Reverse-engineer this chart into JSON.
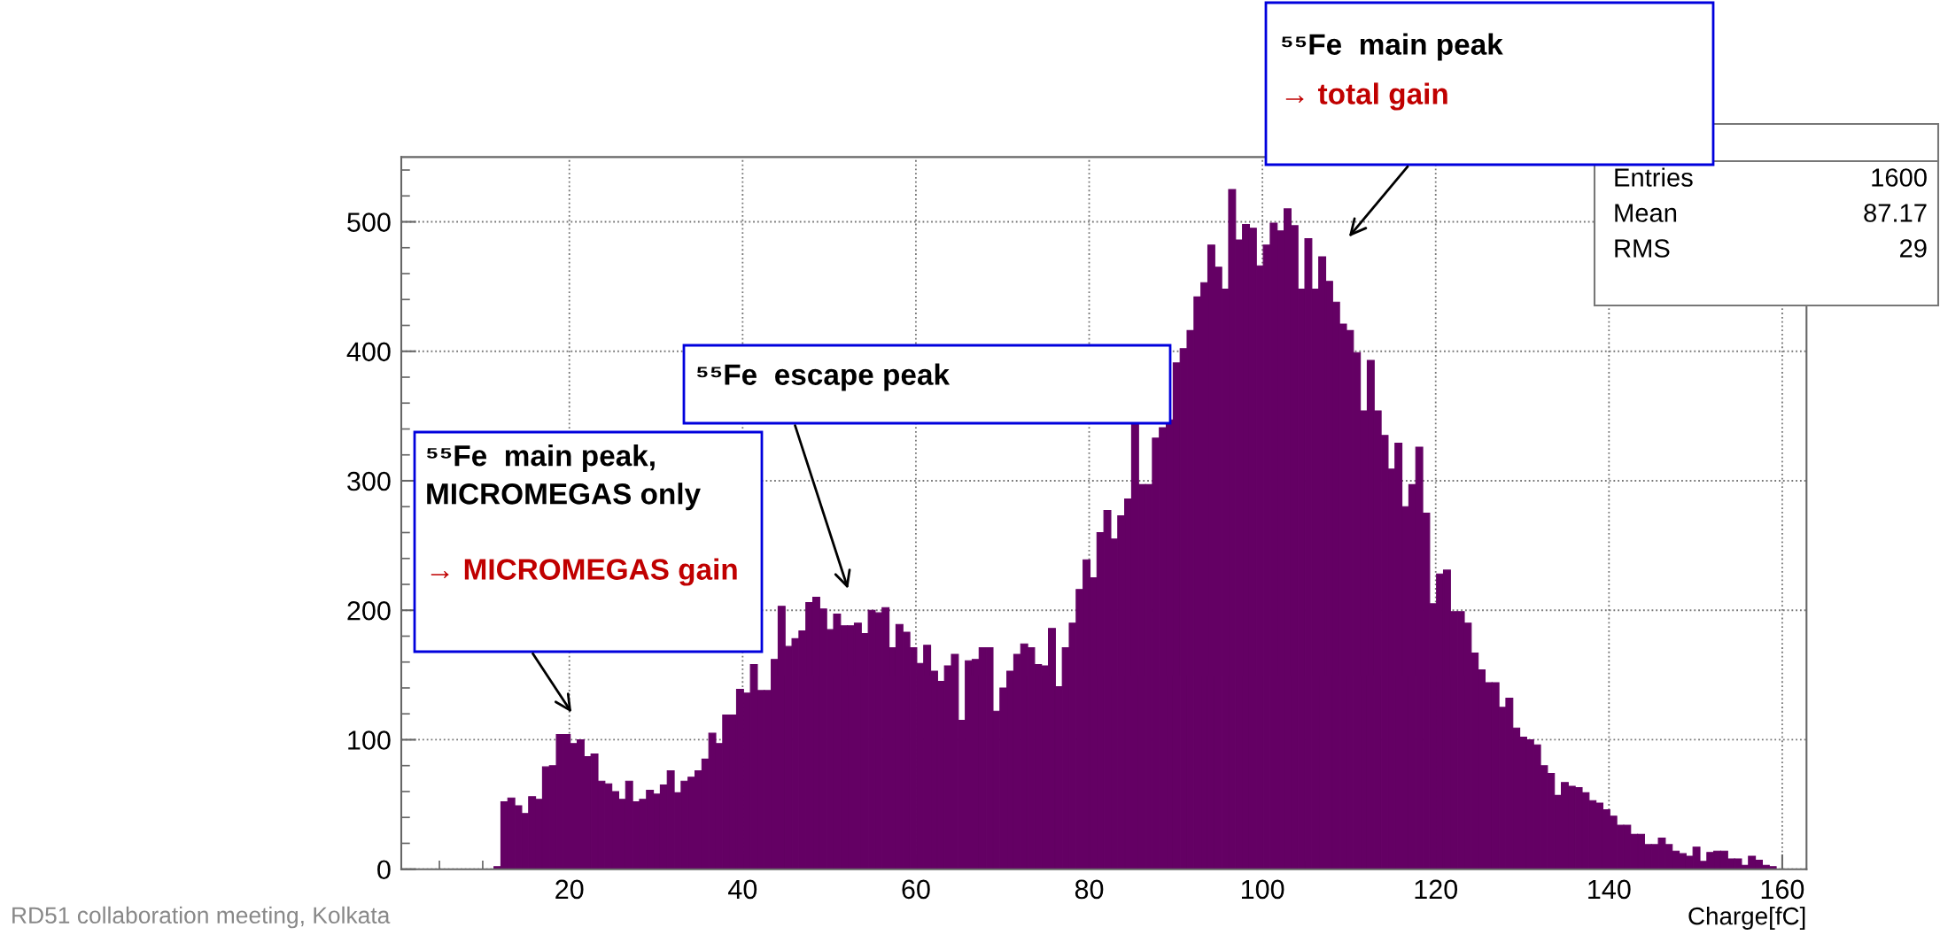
{
  "chart_data": {
    "type": "histogram",
    "xlabel": "Charge[fC]",
    "color": "#640064",
    "bins": [
      11.3,
      12.1,
      12.9,
      13.7,
      14.5,
      15.3,
      16.1,
      16.9,
      17.7,
      18.5,
      19.3,
      20.1,
      20.9,
      21.7,
      22.5,
      23.3,
      24.1,
      24.9,
      25.7,
      26.5,
      27.3,
      28.1,
      28.9,
      29.7,
      30.5,
      31.3,
      32.1,
      32.9,
      33.7,
      34.5,
      35.3,
      36.1,
      36.9,
      37.7,
      38.5,
      39.3,
      40.1,
      40.9,
      41.7,
      42.5,
      43.3,
      44.1,
      44.9,
      45.7,
      46.5,
      47.3,
      48.1,
      48.9,
      49.7,
      50.5,
      51.3,
      52.1,
      52.9,
      53.7,
      54.5,
      55.3,
      56.1,
      56.9,
      57.7,
      58.5,
      59.3,
      60.1,
      60.9,
      61.7,
      62.5,
      63.3,
      64.1,
      64.9,
      65.7,
      66.5,
      67.3,
      68.1,
      68.9,
      69.7,
      70.5,
      71.3,
      72.1,
      72.9,
      73.7,
      74.5,
      75.3,
      76.1,
      76.9,
      77.7,
      78.5,
      79.3,
      80.1,
      80.9,
      81.7,
      82.5,
      83.3,
      84.1,
      84.9,
      85.7,
      86.5,
      87.3,
      88.1,
      88.9,
      89.7,
      90.5,
      91.3,
      92.1,
      92.9,
      93.7,
      94.5,
      95.3,
      96.1,
      96.9,
      97.7,
      98.5,
      99.3,
      100.1,
      100.9,
      101.7,
      102.5,
      103.3,
      104.1,
      104.9,
      105.7,
      106.5,
      107.3,
      108.1,
      108.9,
      109.7,
      110.5,
      111.3,
      112.1,
      112.9,
      113.7,
      114.5,
      115.3,
      116.1,
      116.9,
      117.7,
      118.5,
      119.3,
      120.1,
      120.9,
      121.7,
      122.5,
      123.3,
      124.1,
      124.9,
      125.7,
      126.5,
      127.3,
      128.1,
      128.9,
      129.7,
      130.5,
      131.3,
      132.1,
      132.9,
      133.7,
      134.5,
      135.3,
      136.1,
      136.9,
      137.7,
      138.5,
      139.3,
      140.1,
      140.9,
      141.7,
      142.5,
      143.3,
      144.1,
      144.9,
      145.7,
      146.5,
      147.3,
      148.1,
      148.9,
      149.7,
      150.5,
      151.3,
      152.1,
      152.9,
      153.7,
      154.5,
      155.3,
      156.1,
      156.9,
      157.7,
      158.5,
      159.3
    ],
    "values": [
      2,
      52,
      55,
      49,
      43,
      56,
      54,
      79,
      80,
      104,
      104,
      97,
      100,
      87,
      89,
      68,
      66,
      60,
      54,
      68,
      52,
      54,
      61,
      58,
      65,
      76,
      59,
      68,
      71,
      76,
      85,
      105,
      97,
      119,
      119,
      139,
      136,
      158,
      138,
      138,
      162,
      203,
      172,
      178,
      184,
      206,
      210,
      201,
      185,
      197,
      188,
      188,
      190,
      182,
      200,
      198,
      202,
      171,
      189,
      183,
      171,
      159,
      173,
      153,
      145,
      157,
      166,
      115,
      161,
      162,
      171,
      171,
      122,
      140,
      153,
      166,
      174,
      171,
      158,
      157,
      186,
      141,
      171,
      190,
      216,
      239,
      225,
      260,
      277,
      255,
      273,
      286,
      344,
      297,
      297,
      333,
      341,
      347,
      391,
      402,
      416,
      442,
      453,
      482,
      465,
      448,
      525,
      486,
      498,
      495,
      466,
      482,
      499,
      493,
      510,
      497,
      448,
      487,
      448,
      473,
      454,
      438,
      421,
      416,
      399,
      354,
      393,
      354,
      335,
      309,
      329,
      280,
      297,
      326,
      275,
      205,
      228,
      231,
      199,
      199,
      190,
      167,
      154,
      144,
      144,
      125,
      132,
      109,
      102,
      100,
      96,
      80,
      74,
      57,
      67,
      64,
      63,
      59,
      53,
      51,
      46,
      41,
      34,
      34,
      27,
      27,
      19,
      19,
      24,
      19,
      14,
      12,
      10,
      17,
      6,
      13,
      14,
      14,
      8,
      8,
      3,
      10,
      7,
      3,
      2
    ],
    "xlim": [
      0.6,
      162.8
    ],
    "ylim": [
      0,
      550
    ],
    "xticks": [
      {
        "value": 5,
        "label": null
      },
      {
        "value": 10,
        "label": null
      },
      {
        "value": 15,
        "label": null
      },
      20,
      {
        "value": 25,
        "label": null
      },
      {
        "value": 30,
        "label": null
      },
      {
        "value": 35,
        "label": null
      },
      40,
      {
        "value": 45,
        "label": null
      },
      {
        "value": 50,
        "label": null
      },
      {
        "value": 55,
        "label": null
      },
      60,
      {
        "value": 65,
        "label": null
      },
      {
        "value": 70,
        "label": null
      },
      {
        "value": 75,
        "label": null
      },
      80,
      {
        "value": 85,
        "label": null
      },
      {
        "value": 90,
        "label": null
      },
      {
        "value": 95,
        "label": null
      },
      100,
      {
        "value": 105,
        "label": null
      },
      {
        "value": 110,
        "label": null
      },
      {
        "value": 115,
        "label": null
      },
      120,
      {
        "value": 125,
        "label": null
      },
      {
        "value": 130,
        "label": null
      },
      {
        "value": 135,
        "label": null
      },
      140,
      {
        "value": 145,
        "label": null
      },
      {
        "value": 150,
        "label": null
      },
      {
        "value": 155,
        "label": null
      },
      160
    ],
    "yticks": [
      0,
      {
        "value": 20,
        "label": null
      },
      {
        "value": 40,
        "label": null
      },
      {
        "value": 60,
        "label": null
      },
      {
        "value": 80,
        "label": null
      },
      100,
      {
        "value": 120,
        "label": null
      },
      {
        "value": 140,
        "label": null
      },
      {
        "value": 160,
        "label": null
      },
      {
        "value": 180,
        "label": null
      },
      200,
      {
        "value": 220,
        "label": null
      },
      {
        "value": 240,
        "label": null
      },
      {
        "value": 260,
        "label": null
      },
      {
        "value": 280,
        "label": null
      },
      300,
      {
        "value": 320,
        "label": null
      },
      {
        "value": 340,
        "label": null
      },
      {
        "value": 360,
        "label": null
      },
      {
        "value": 380,
        "label": null
      },
      400,
      {
        "value": 420,
        "label": null
      },
      {
        "value": 440,
        "label": null
      },
      {
        "value": 460,
        "label": null
      },
      {
        "value": 480,
        "label": null
      },
      500,
      {
        "value": 520,
        "label": null
      },
      {
        "value": 540,
        "label": null
      }
    ],
    "grid": true,
    "annotations": [
      "⁵⁵Fe  main peak,\nMICROMEGAS only",
      "→ MICROMEGAS gain",
      "⁵⁵Fe  escape peak",
      "⁵⁵Fe  main peak",
      "→ total gain",
      "Entries",
      "1600",
      "Mean",
      "87.17",
      "RMS",
      "29",
      "RD51 collaboration meeting, Kolkata"
    ]
  }
}
